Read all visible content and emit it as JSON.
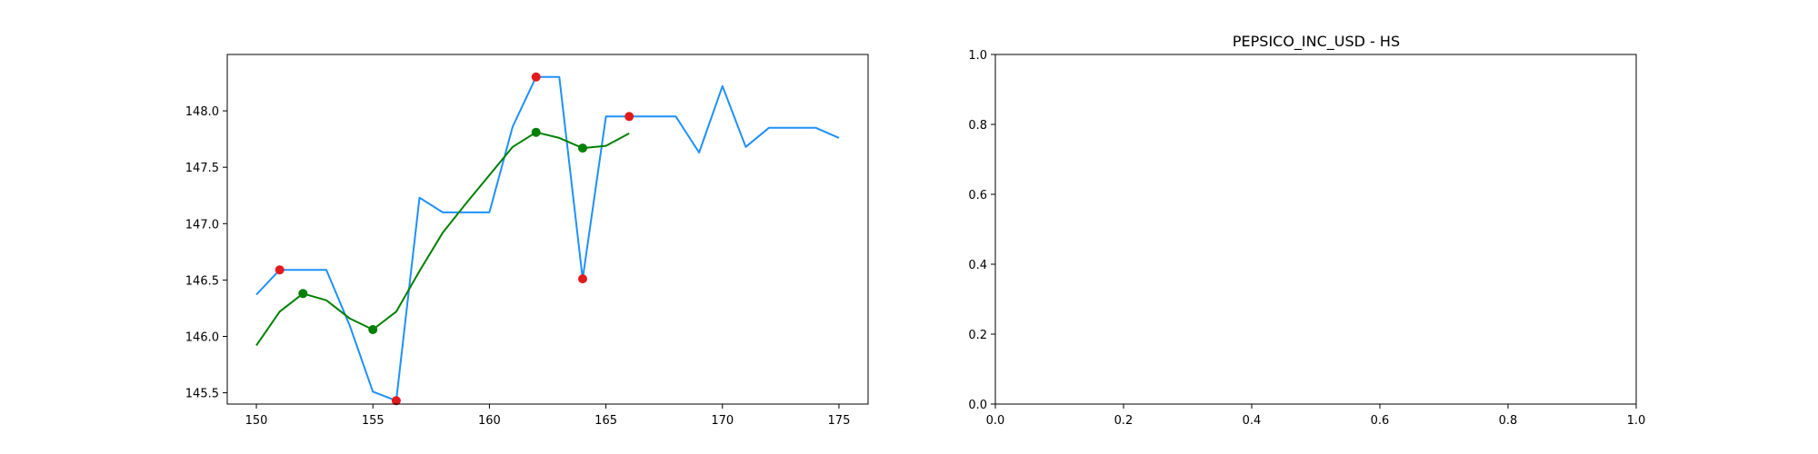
{
  "chart_data": [
    {
      "type": "line",
      "title": "",
      "xlabel": "",
      "ylabel": "",
      "xlim": [
        148.75,
        176.25
      ],
      "ylim": [
        145.4,
        148.5
      ],
      "xticks": [
        150,
        155,
        160,
        165,
        170,
        175
      ],
      "xtick_labels": [
        "150",
        "155",
        "160",
        "165",
        "170",
        "175"
      ],
      "yticks": [
        145.5,
        146.0,
        146.5,
        147.0,
        147.5,
        148.0
      ],
      "ytick_labels": [
        "145.5",
        "146.0",
        "146.5",
        "147.0",
        "147.5",
        "148.0"
      ],
      "grid": false,
      "series": [
        {
          "color": "#1e90ff",
          "x": [
            150,
            151,
            152,
            153,
            154,
            155,
            156,
            157,
            158,
            159,
            160,
            161,
            162,
            163,
            164,
            165,
            166,
            167,
            168,
            169,
            170,
            171,
            172,
            173,
            174,
            175
          ],
          "y": [
            146.37,
            146.59,
            146.59,
            146.59,
            146.1,
            145.51,
            145.43,
            147.23,
            147.1,
            147.1,
            147.1,
            147.86,
            148.3,
            148.3,
            146.51,
            147.95,
            147.95,
            147.95,
            147.95,
            147.63,
            148.22,
            147.68,
            147.85,
            147.85,
            147.85,
            147.76
          ]
        },
        {
          "color": "#008000",
          "x": [
            150,
            151,
            152,
            153,
            154,
            155,
            156,
            157,
            158,
            159,
            160,
            161,
            162,
            163,
            164,
            165,
            166
          ],
          "y": [
            145.92,
            146.22,
            146.38,
            146.32,
            146.16,
            146.06,
            146.22,
            146.58,
            146.92,
            147.18,
            147.43,
            147.68,
            147.81,
            147.76,
            147.67,
            147.69,
            147.8
          ]
        }
      ],
      "markers": [
        {
          "color": "#e31a1c",
          "x": [
            151,
            156,
            162,
            164,
            166
          ],
          "y": [
            146.59,
            145.43,
            148.3,
            146.51,
            147.95
          ]
        },
        {
          "color": "#008000",
          "x": [
            152,
            155,
            162,
            164
          ],
          "y": [
            146.38,
            146.06,
            147.81,
            147.67
          ]
        }
      ]
    },
    {
      "type": "line",
      "title": "PEPSICO_INC_USD - HS",
      "xlabel": "",
      "ylabel": "",
      "xlim": [
        0,
        1
      ],
      "ylim": [
        0,
        1
      ],
      "xticks": [
        0,
        0.2,
        0.4,
        0.6,
        0.8,
        1.0
      ],
      "xtick_labels": [
        "0.0",
        "0.2",
        "0.4",
        "0.6",
        "0.8",
        "1.0"
      ],
      "yticks": [
        0,
        0.2,
        0.4,
        0.6,
        0.8,
        1.0
      ],
      "ytick_labels": [
        "0.0",
        "0.2",
        "0.4",
        "0.6",
        "0.8",
        "1.0"
      ],
      "grid": false,
      "series": []
    }
  ]
}
